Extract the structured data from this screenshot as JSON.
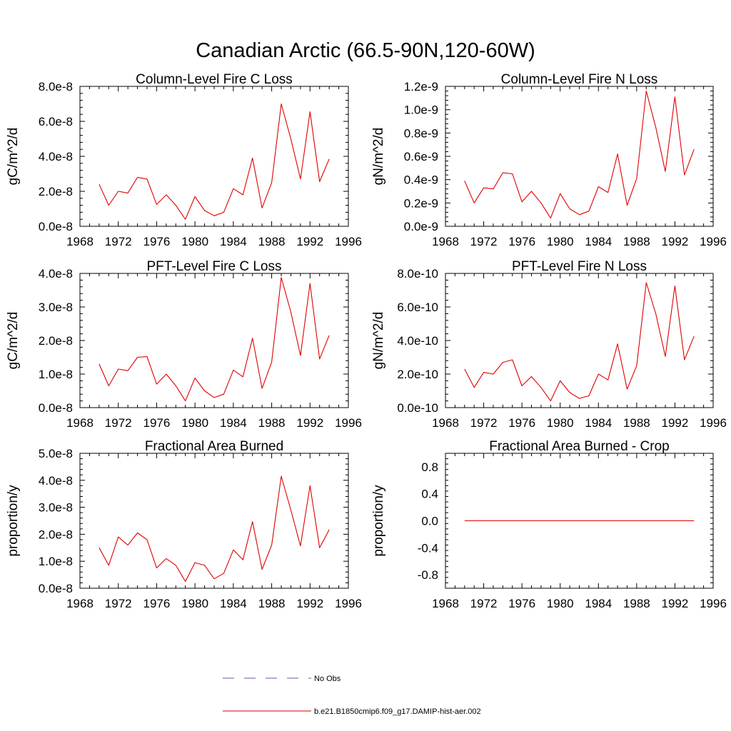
{
  "figure": {
    "title": "Canadian Arctic (66.5-90N,120-60W)"
  },
  "legend": {
    "items": [
      {
        "label": "No Obs",
        "color": "#5b5bb8",
        "style": "dashed"
      },
      {
        "label": "b.e21.B1850cmip6.f09_g17.DAMIP-hist-aer.002",
        "color": "#e00000",
        "style": "solid"
      }
    ]
  },
  "chart_data": [
    {
      "type": "line",
      "title": "Column-Level Fire C Loss",
      "xlabel": "",
      "ylabel": "gC/m^2/d",
      "xlim": [
        1968,
        1996
      ],
      "ylim": [
        0,
        8e-08
      ],
      "xticks": [
        1968,
        1972,
        1976,
        1980,
        1984,
        1988,
        1992,
        1996
      ],
      "xtick_labels": [
        "1968",
        "1972",
        "1976",
        "1980",
        "1984",
        "1988",
        "1992",
        "1996"
      ],
      "yticks": [
        0,
        2e-08,
        4e-08,
        6e-08,
        8e-08
      ],
      "ytick_labels": [
        "0.0e-8",
        "2.0e-8",
        "4.0e-8",
        "6.0e-8",
        "8.0e-8"
      ],
      "x": [
        1970,
        1971,
        1972,
        1973,
        1974,
        1975,
        1976,
        1977,
        1978,
        1979,
        1980,
        1981,
        1982,
        1983,
        1984,
        1985,
        1986,
        1987,
        1988,
        1989,
        1990,
        1991,
        1992,
        1993,
        1994
      ],
      "series": [
        {
          "name": "b.e21.B1850cmip6.f09_g17.DAMIP-hist-aer.002",
          "color": "#e00000",
          "values": [
            2.4e-08,
            1.2e-08,
            2e-08,
            1.9e-08,
            2.8e-08,
            2.7e-08,
            1.25e-08,
            1.8e-08,
            1.2e-08,
            4e-09,
            1.7e-08,
            9e-09,
            6e-09,
            8e-09,
            2.15e-08,
            1.8e-08,
            3.9e-08,
            1.05e-08,
            2.5e-08,
            7e-08,
            5e-08,
            2.7e-08,
            6.55e-08,
            2.55e-08,
            3.85e-08
          ]
        }
      ]
    },
    {
      "type": "line",
      "title": "Column-Level Fire N Loss",
      "xlabel": "",
      "ylabel": "gN/m^2/d",
      "xlim": [
        1968,
        1996
      ],
      "ylim": [
        0,
        1.2e-09
      ],
      "xticks": [
        1968,
        1972,
        1976,
        1980,
        1984,
        1988,
        1992,
        1996
      ],
      "xtick_labels": [
        "1968",
        "1972",
        "1976",
        "1980",
        "1984",
        "1988",
        "1992",
        "1996"
      ],
      "yticks": [
        0,
        2e-10,
        4e-10,
        6e-10,
        8e-10,
        1e-09,
        1.2e-09
      ],
      "ytick_labels": [
        "0.0e-9",
        "0.2e-9",
        "0.4e-9",
        "0.6e-9",
        "0.8e-9",
        "1.0e-9",
        "1.2e-9"
      ],
      "x": [
        1970,
        1971,
        1972,
        1973,
        1974,
        1975,
        1976,
        1977,
        1978,
        1979,
        1980,
        1981,
        1982,
        1983,
        1984,
        1985,
        1986,
        1987,
        1988,
        1989,
        1990,
        1991,
        1992,
        1993,
        1994
      ],
      "series": [
        {
          "name": "b.e21.B1850cmip6.f09_g17.DAMIP-hist-aer.002",
          "color": "#e00000",
          "values": [
            3.9e-10,
            2e-10,
            3.3e-10,
            3.2e-10,
            4.6e-10,
            4.5e-10,
            2.1e-10,
            3e-10,
            2e-10,
            7e-11,
            2.8e-10,
            1.5e-10,
            1e-10,
            1.3e-10,
            3.4e-10,
            2.9e-10,
            6.2e-10,
            1.8e-10,
            4.1e-10,
            1.16e-09,
            8.5e-10,
            4.7e-10,
            1.11e-09,
            4.4e-10,
            6.6e-10
          ]
        }
      ]
    },
    {
      "type": "line",
      "title": "PFT-Level Fire C Loss",
      "xlabel": "",
      "ylabel": "gC/m^2/d",
      "xlim": [
        1968,
        1996
      ],
      "ylim": [
        0,
        4e-08
      ],
      "xticks": [
        1968,
        1972,
        1976,
        1980,
        1984,
        1988,
        1992,
        1996
      ],
      "xtick_labels": [
        "1968",
        "1972",
        "1976",
        "1980",
        "1984",
        "1988",
        "1992",
        "1996"
      ],
      "yticks": [
        0,
        1e-08,
        2e-08,
        3e-08,
        4e-08
      ],
      "ytick_labels": [
        "0.0e-8",
        "1.0e-8",
        "2.0e-8",
        "3.0e-8",
        "4.0e-8"
      ],
      "x": [
        1970,
        1971,
        1972,
        1973,
        1974,
        1975,
        1976,
        1977,
        1978,
        1979,
        1980,
        1981,
        1982,
        1983,
        1984,
        1985,
        1986,
        1987,
        1988,
        1989,
        1990,
        1991,
        1992,
        1993,
        1994
      ],
      "series": [
        {
          "name": "b.e21.B1850cmip6.f09_g17.DAMIP-hist-aer.002",
          "color": "#e00000",
          "values": [
            1.3e-08,
            6.5e-09,
            1.15e-08,
            1.1e-08,
            1.5e-08,
            1.52e-08,
            7e-09,
            1e-08,
            6.5e-09,
            2e-09,
            8.8e-09,
            5e-09,
            3e-09,
            4e-09,
            1.12e-08,
            9.2e-09,
            2.07e-08,
            5.7e-09,
            1.36e-08,
            3.88e-08,
            2.85e-08,
            1.55e-08,
            3.7e-08,
            1.45e-08,
            2.15e-08
          ]
        }
      ]
    },
    {
      "type": "line",
      "title": "PFT-Level Fire N Loss",
      "xlabel": "",
      "ylabel": "gN/m^2/d",
      "xlim": [
        1968,
        1996
      ],
      "ylim": [
        0,
        8e-10
      ],
      "xticks": [
        1968,
        1972,
        1976,
        1980,
        1984,
        1988,
        1992,
        1996
      ],
      "xtick_labels": [
        "1968",
        "1972",
        "1976",
        "1980",
        "1984",
        "1988",
        "1992",
        "1996"
      ],
      "yticks": [
        0,
        2e-10,
        4e-10,
        6e-10,
        8e-10
      ],
      "ytick_labels": [
        "0.0e-10",
        "2.0e-10",
        "4.0e-10",
        "6.0e-10",
        "8.0e-10"
      ],
      "x": [
        1970,
        1971,
        1972,
        1973,
        1974,
        1975,
        1976,
        1977,
        1978,
        1979,
        1980,
        1981,
        1982,
        1983,
        1984,
        1985,
        1986,
        1987,
        1988,
        1989,
        1990,
        1991,
        1992,
        1993,
        1994
      ],
      "series": [
        {
          "name": "b.e21.B1850cmip6.f09_g17.DAMIP-hist-aer.002",
          "color": "#e00000",
          "values": [
            2.3e-10,
            1.2e-10,
            2.1e-10,
            2e-10,
            2.7e-10,
            2.85e-10,
            1.3e-10,
            1.85e-10,
            1.2e-10,
            4e-11,
            1.6e-10,
            9e-11,
            5.5e-11,
            7e-11,
            2e-10,
            1.65e-10,
            3.8e-10,
            1.1e-10,
            2.5e-10,
            7.45e-10,
            5.6e-10,
            3.05e-10,
            7.25e-10,
            2.85e-10,
            4.25e-10
          ]
        }
      ]
    },
    {
      "type": "line",
      "title": "Fractional Area Burned",
      "xlabel": "",
      "ylabel": "proportion/y",
      "xlim": [
        1968,
        1996
      ],
      "ylim": [
        0,
        5e-08
      ],
      "xticks": [
        1968,
        1972,
        1976,
        1980,
        1984,
        1988,
        1992,
        1996
      ],
      "xtick_labels": [
        "1968",
        "1972",
        "1976",
        "1980",
        "1984",
        "1988",
        "1992",
        "1996"
      ],
      "yticks": [
        0,
        1e-08,
        2e-08,
        3e-08,
        4e-08,
        5e-08
      ],
      "ytick_labels": [
        "0.0e-8",
        "1.0e-8",
        "2.0e-8",
        "3.0e-8",
        "4.0e-8",
        "5.0e-8"
      ],
      "x": [
        1970,
        1971,
        1972,
        1973,
        1974,
        1975,
        1976,
        1977,
        1978,
        1979,
        1980,
        1981,
        1982,
        1983,
        1984,
        1985,
        1986,
        1987,
        1988,
        1989,
        1990,
        1991,
        1992,
        1993,
        1994
      ],
      "series": [
        {
          "name": "b.e21.B1850cmip6.f09_g17.DAMIP-hist-aer.002",
          "color": "#e00000",
          "values": [
            1.5e-08,
            8.5e-09,
            1.9e-08,
            1.6e-08,
            2.05e-08,
            1.8e-08,
            7.5e-09,
            1.1e-08,
            8.5e-09,
            2.5e-09,
            9.5e-09,
            8.5e-09,
            3.5e-09,
            5.5e-09,
            1.42e-08,
            1.05e-08,
            2.47e-08,
            7e-09,
            1.6e-08,
            4.15e-08,
            2.9e-08,
            1.57e-08,
            3.8e-08,
            1.5e-08,
            2.17e-08
          ]
        }
      ]
    },
    {
      "type": "line",
      "title": "Fractional Area Burned - Crop",
      "xlabel": "",
      "ylabel": "proportion/y",
      "xlim": [
        1968,
        1996
      ],
      "ylim": [
        -1.0,
        1.0
      ],
      "xticks": [
        1968,
        1972,
        1976,
        1980,
        1984,
        1988,
        1992,
        1996
      ],
      "xtick_labels": [
        "1968",
        "1972",
        "1976",
        "1980",
        "1984",
        "1988",
        "1992",
        "1996"
      ],
      "yticks": [
        -0.8,
        -0.4,
        0.0,
        0.4,
        0.8
      ],
      "ytick_labels": [
        "-0.8",
        "-0.4",
        "0.0",
        "0.4",
        "0.8"
      ],
      "x": [
        1970,
        1971,
        1972,
        1973,
        1974,
        1975,
        1976,
        1977,
        1978,
        1979,
        1980,
        1981,
        1982,
        1983,
        1984,
        1985,
        1986,
        1987,
        1988,
        1989,
        1990,
        1991,
        1992,
        1993,
        1994
      ],
      "series": [
        {
          "name": "b.e21.B1850cmip6.f09_g17.DAMIP-hist-aer.002",
          "color": "#e00000",
          "values": [
            0,
            0,
            0,
            0,
            0,
            0,
            0,
            0,
            0,
            0,
            0,
            0,
            0,
            0,
            0,
            0,
            0,
            0,
            0,
            0,
            0,
            0,
            0,
            0,
            0
          ]
        }
      ]
    }
  ]
}
